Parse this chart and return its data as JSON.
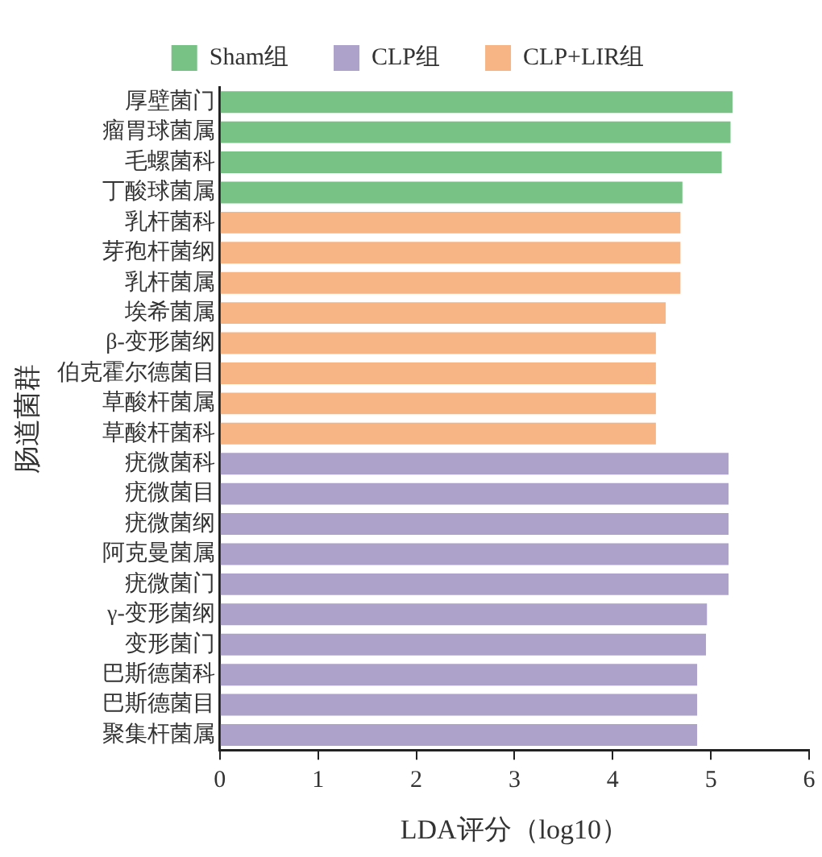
{
  "chart_data": {
    "type": "bar",
    "orientation": "horizontal",
    "xlabel": "LDA评分（log10）",
    "ylabel": "肠道菌群",
    "categories": [
      "厚壁菌门",
      "瘤胃球菌属",
      "毛螺菌科",
      "丁酸球菌属",
      "乳杆菌科",
      "芽孢杆菌纲",
      "乳杆菌属",
      "埃希菌属",
      "β-变形菌纲",
      "伯克霍尔德菌目",
      "草酸杆菌属",
      "草酸杆菌科",
      "疣微菌科",
      "疣微菌目",
      "疣微菌纲",
      "阿克曼菌属",
      "疣微菌门",
      "γ-变形菌纲",
      "变形菌门",
      "巴斯德菌科",
      "巴斯德菌目",
      "聚集杆菌属"
    ],
    "series": [
      {
        "name": "Sham组",
        "color": "#78c285",
        "values": [
          5.22,
          5.2,
          5.11,
          4.71,
          null,
          null,
          null,
          null,
          null,
          null,
          null,
          null,
          null,
          null,
          null,
          null,
          null,
          null,
          null,
          null,
          null,
          null
        ]
      },
      {
        "name": "CLP组",
        "color": "#ada2c9",
        "values": [
          null,
          null,
          null,
          null,
          null,
          null,
          null,
          null,
          null,
          null,
          null,
          null,
          5.18,
          5.18,
          5.18,
          5.18,
          5.18,
          4.96,
          4.95,
          4.86,
          4.86,
          4.86
        ]
      },
      {
        "name": "CLP+LIR组",
        "color": "#f7b585",
        "values": [
          null,
          null,
          null,
          null,
          4.69,
          4.69,
          4.69,
          4.54,
          4.44,
          4.44,
          4.44,
          4.44,
          null,
          null,
          null,
          null,
          null,
          null,
          null,
          null,
          null,
          null
        ]
      }
    ],
    "xlim": [
      0,
      6
    ],
    "xticks": [
      0,
      1,
      2,
      3,
      4,
      5,
      6
    ],
    "grid": false,
    "legend": "top"
  }
}
